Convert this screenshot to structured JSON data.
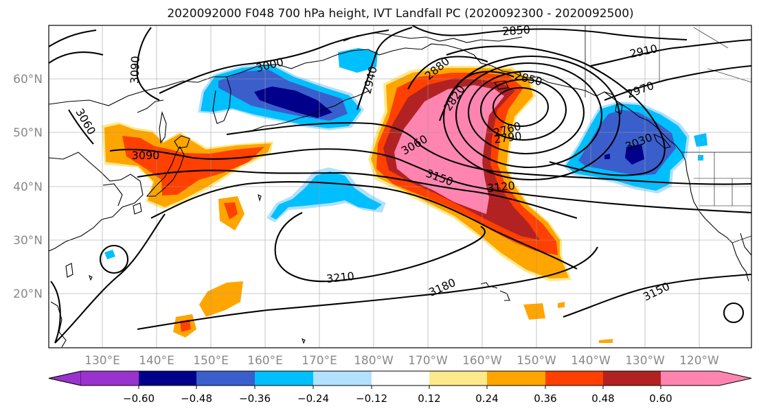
{
  "title": "2020092000 F048 700 hPa height, IVT Landfall PC (2020092300 - 2020092500)",
  "lon_labels": [
    "130°E",
    "140°E",
    "150°E",
    "160°E",
    "170°E",
    "180°W",
    "170°W",
    "160°W",
    "150°W",
    "140°W",
    "130°W",
    "120°W"
  ],
  "lat_labels": [
    "60°N",
    "50°N",
    "40°N",
    "30°N",
    "20°N"
  ],
  "colorbar": {
    "colors": [
      "#9a32cd",
      "#00008b",
      "#3a5fcd",
      "#00bfff",
      "#b2e0ff",
      "#ffffff",
      "#fde98a",
      "#ffa500",
      "#ff4000",
      "#b22222",
      "#ff85b0"
    ],
    "ticks": [
      "−0.60",
      "−0.48",
      "−0.36",
      "−0.24",
      "−0.12",
      "0.12",
      "0.24",
      "0.36",
      "0.48",
      "0.60"
    ]
  },
  "contour_labels": [
    "2850",
    "2910",
    "2970",
    "3000",
    "2940",
    "2880",
    "2820",
    "2850",
    "2760",
    "2790",
    "3060",
    "3060",
    "3090",
    "3090",
    "3030",
    "3150",
    "3120",
    "3210",
    "3180",
    "3150"
  ]
}
